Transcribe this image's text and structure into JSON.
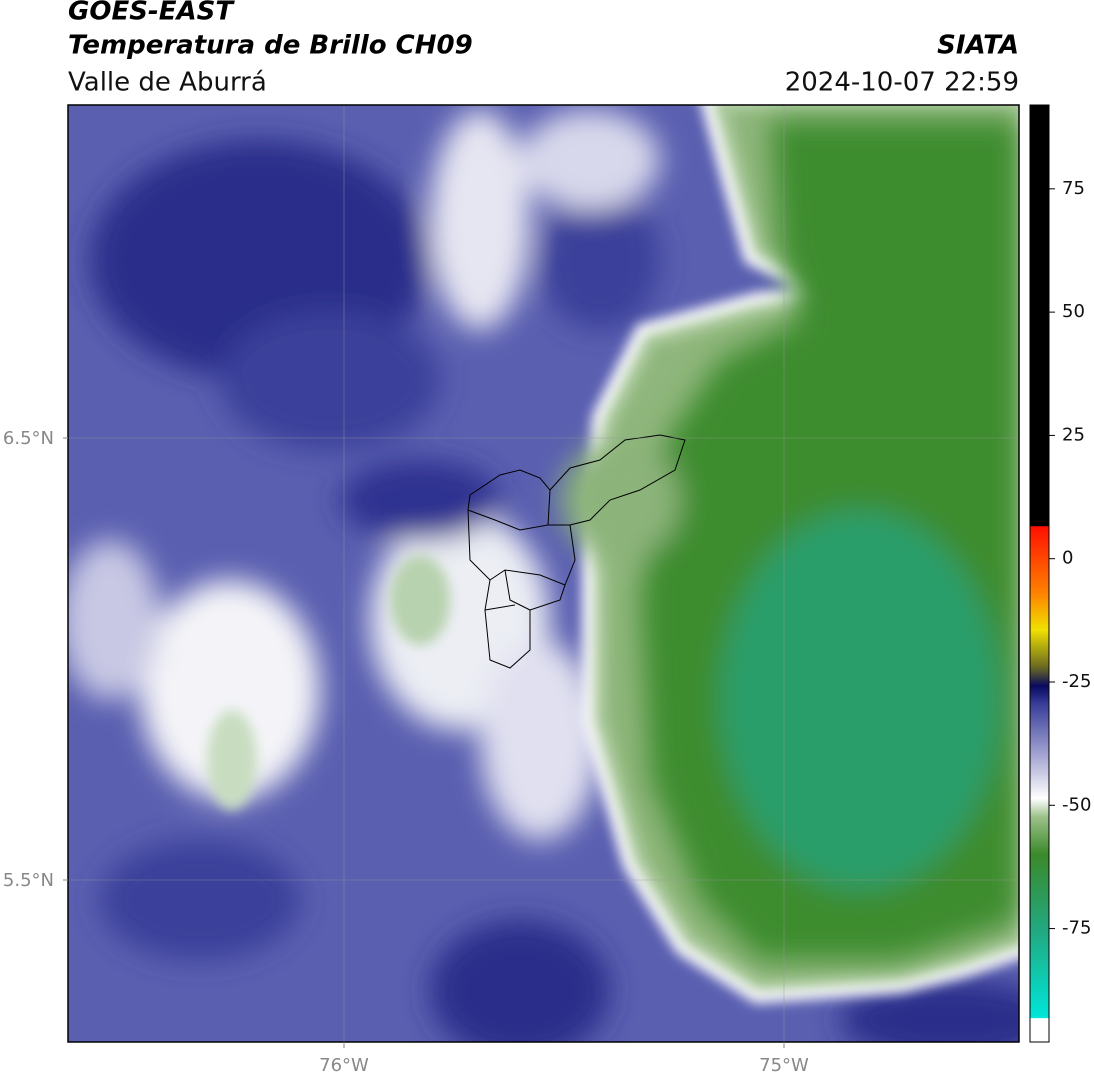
{
  "header": {
    "title": "GOES-EAST",
    "subtitle": "Temperatura de Brillo CH09",
    "region": "Valle de Aburrá",
    "source": "SIATA",
    "datetime": "2024-10-07 22:59"
  },
  "map": {
    "lon_labels": [
      "76°W",
      "75°W"
    ],
    "lat_labels": [
      "6.5°N",
      "5.5°N"
    ]
  },
  "colorbar": {
    "lim": [
      -98,
      92
    ],
    "ticks": [
      75,
      50,
      25,
      0,
      -25,
      -50,
      -75
    ]
  }
}
